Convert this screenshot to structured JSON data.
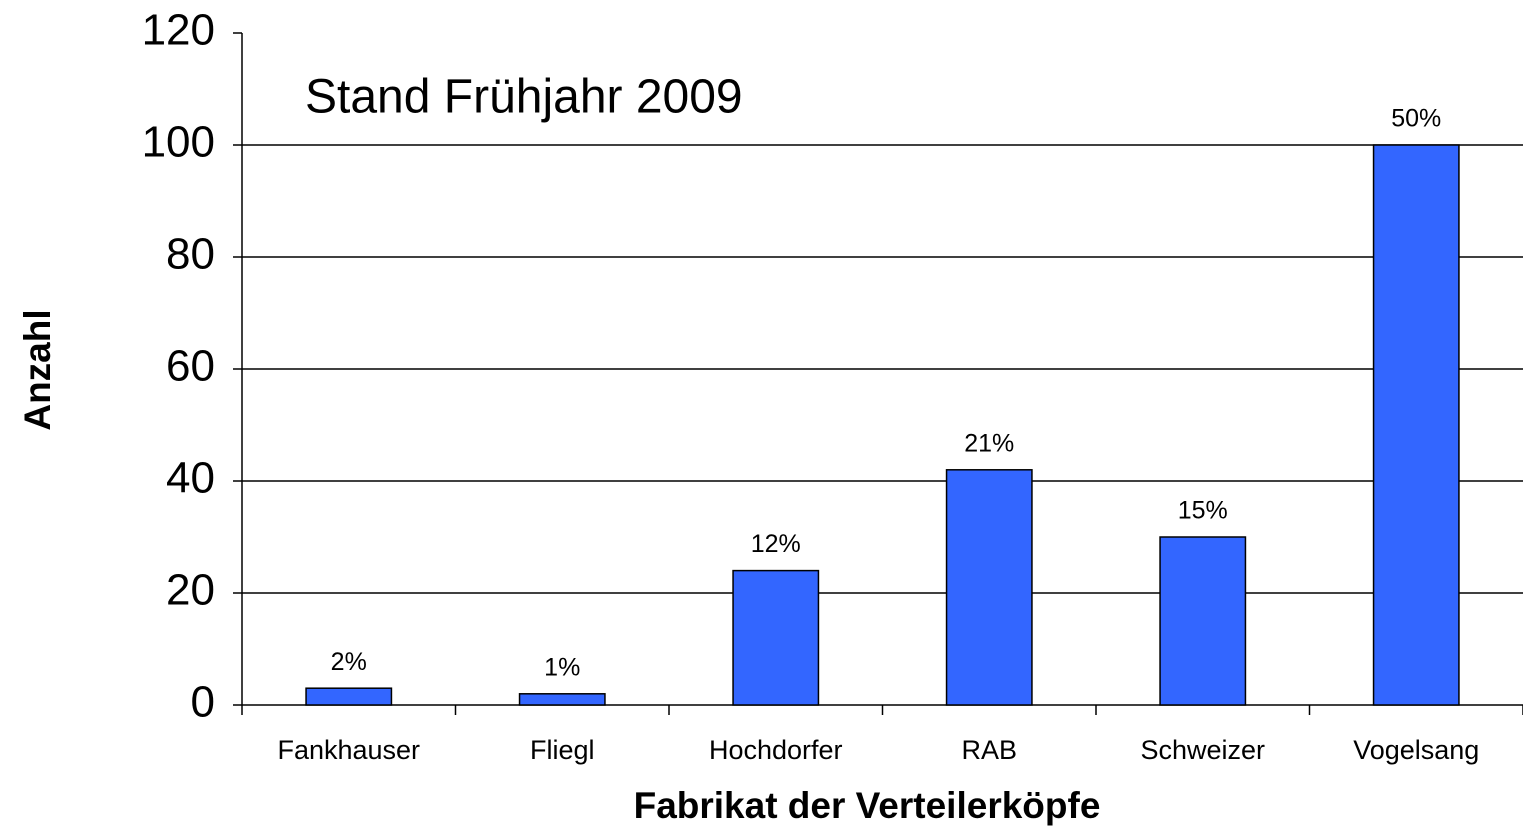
{
  "chart_data": {
    "type": "bar",
    "title": "Stand Frühjahr 2009",
    "x_label": "Fabrikat der Verteilerköpfe",
    "y_label": "Anzahl",
    "categories": [
      "Fankhauser",
      "Fliegl",
      "Hochdorfer",
      "RAB",
      "Schweizer",
      "Vogelsang"
    ],
    "values": [
      3,
      2,
      24,
      42,
      30,
      100
    ],
    "share_labels": [
      {
        "value": 2,
        "label": "2%"
      },
      {
        "value": 1,
        "label": "1%"
      },
      {
        "value": 12,
        "label": "12%"
      },
      {
        "value": 21,
        "label": "21%"
      },
      {
        "value": 15,
        "label": "15%"
      },
      {
        "value": 50,
        "label": "50%"
      }
    ],
    "color": "#3366ff",
    "ylim": [
      0,
      120
    ],
    "yticks": [
      0,
      20,
      40,
      60,
      80,
      100,
      120
    ],
    "grid": true
  }
}
